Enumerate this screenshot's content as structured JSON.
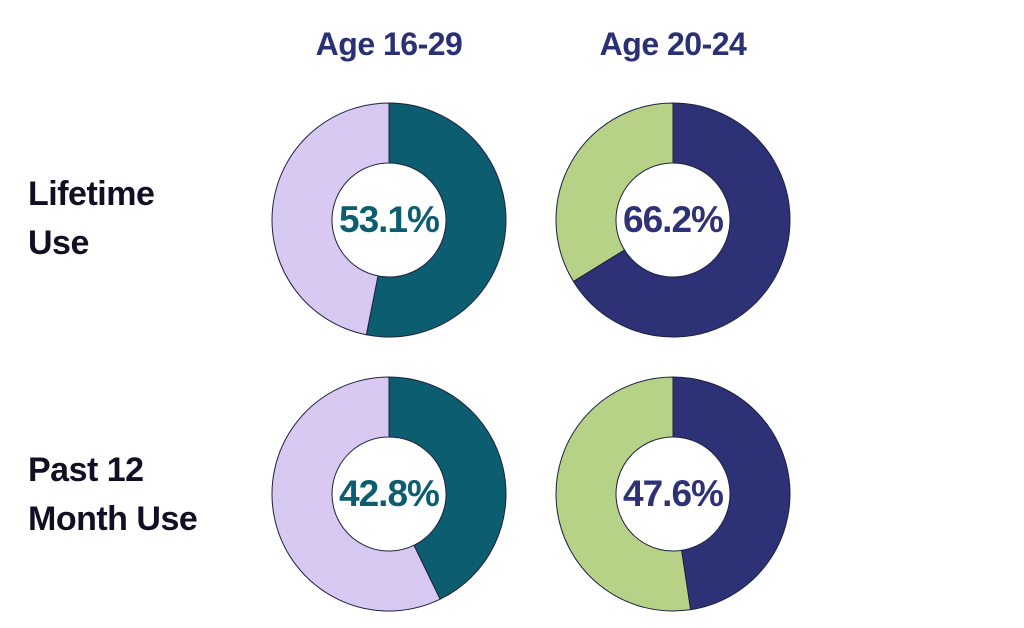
{
  "colors": {
    "teal": "#0c5d70",
    "lavender": "#d8c9f3",
    "navy": "#2d3176",
    "green": "#b5d287",
    "outline": "#1f2040",
    "header_text": "#2a3074",
    "row_label_text": "#100f24",
    "background": "#ffffff"
  },
  "columns": [
    {
      "label": "Age 16-29"
    },
    {
      "label": "Age 20-24"
    }
  ],
  "rows": [
    {
      "line1": "Lifetime",
      "line2": "Use"
    },
    {
      "line1": "Past 12",
      "line2": "Month Use"
    }
  ],
  "chart_data": [
    {
      "type": "pie",
      "variant": "donut",
      "row": "Lifetime Use",
      "column": "Age 16-29",
      "center_label": "53.1%",
      "center_label_color": "#0c5d70",
      "start_angle_deg": 0,
      "direction": "clockwise",
      "slices": [
        {
          "label": "Lifetime use, age 16-29",
          "value": 53.1,
          "color": "#0c5d70"
        },
        {
          "label": "Remainder",
          "value": 46.9,
          "color": "#d8c9f3"
        }
      ]
    },
    {
      "type": "pie",
      "variant": "donut",
      "row": "Lifetime Use",
      "column": "Age 20-24",
      "center_label": "66.2%",
      "center_label_color": "#2d3176",
      "start_angle_deg": 0,
      "direction": "clockwise",
      "slices": [
        {
          "label": "Lifetime use, age 20-24",
          "value": 66.2,
          "color": "#2d3176"
        },
        {
          "label": "Remainder",
          "value": 33.8,
          "color": "#b5d287"
        }
      ]
    },
    {
      "type": "pie",
      "variant": "donut",
      "row": "Past 12 Month Use",
      "column": "Age 16-29",
      "center_label": "42.8%",
      "center_label_color": "#0c5d70",
      "start_angle_deg": 0,
      "direction": "clockwise",
      "slices": [
        {
          "label": "Past 12 month use, age 16-29",
          "value": 42.8,
          "color": "#0c5d70"
        },
        {
          "label": "Remainder",
          "value": 57.2,
          "color": "#d8c9f3"
        }
      ]
    },
    {
      "type": "pie",
      "variant": "donut",
      "row": "Past 12 Month Use",
      "column": "Age 20-24",
      "center_label": "47.6%",
      "center_label_color": "#2d3176",
      "start_angle_deg": 0,
      "direction": "clockwise",
      "slices": [
        {
          "label": "Past 12 month use, age 20-24",
          "value": 47.6,
          "color": "#2d3176"
        },
        {
          "label": "Remainder",
          "value": 52.4,
          "color": "#b5d287"
        }
      ]
    }
  ]
}
